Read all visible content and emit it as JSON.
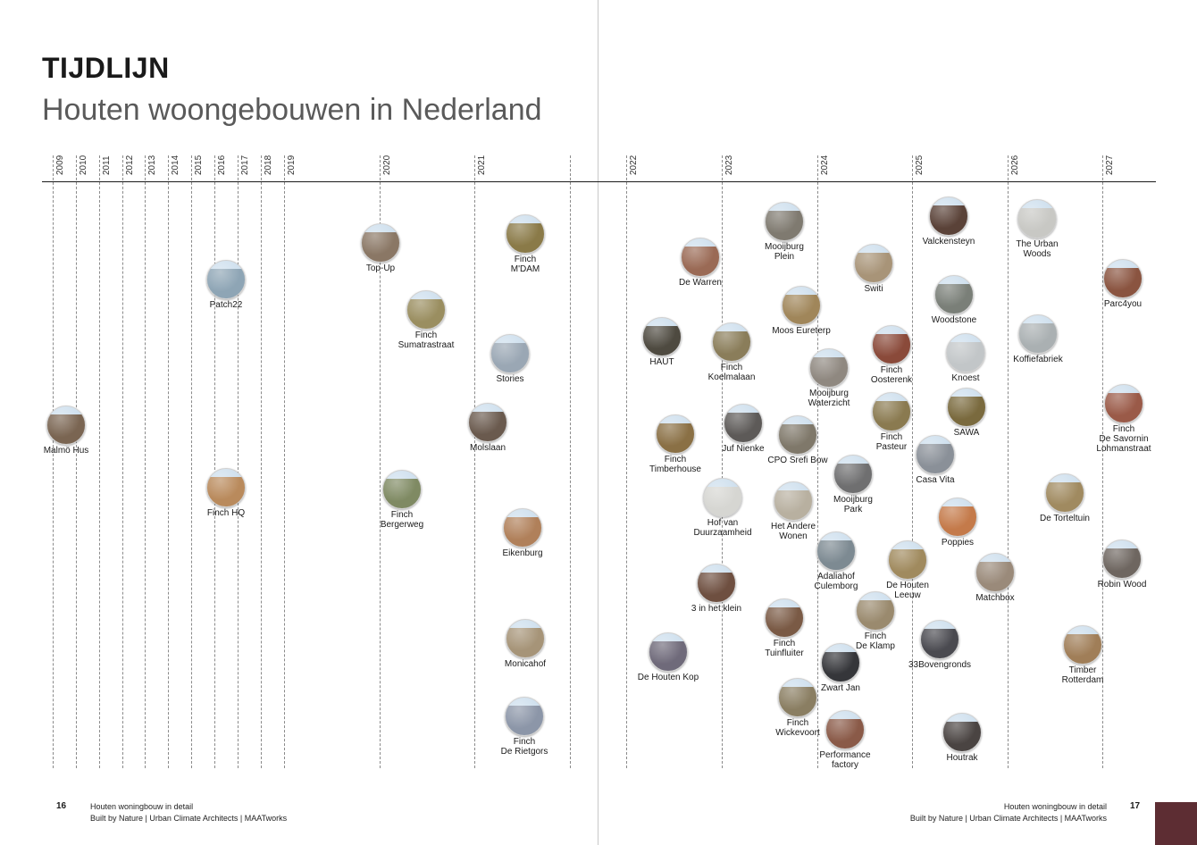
{
  "title": "TIJDLIJN",
  "subtitle": "Houten woongebouwen in Nederland",
  "accent_color": "#5d2d33",
  "years": [
    "2009",
    "2010",
    "2011",
    "2012",
    "2013",
    "2014",
    "2015",
    "2016",
    "2017",
    "2018",
    "2019",
    "2020",
    "2021",
    "2022",
    "2023",
    "2024",
    "2025",
    "2026",
    "2027"
  ],
  "buildings": [
    {
      "label": "Malmö Hus",
      "photo": "#7a6552"
    },
    {
      "label": "Patch22",
      "photo": "#8ea5b5"
    },
    {
      "label": "Finch HQ",
      "photo": "#b98a5c"
    },
    {
      "label": "Top-Up",
      "photo": "#8a7765"
    },
    {
      "label": "Finch\nBergerweg",
      "photo": "#7f8a63"
    },
    {
      "label": "Finch\nSumatrastraat",
      "photo": "#9a8e60"
    },
    {
      "label": "Finch\nM'DAM",
      "photo": "#8a7a48"
    },
    {
      "label": "Stories",
      "photo": "#9aa7b4"
    },
    {
      "label": "Molslaan",
      "photo": "#6a5a4e"
    },
    {
      "label": "Eikenburg",
      "photo": "#b0805a"
    },
    {
      "label": "Monicahof",
      "photo": "#a69478"
    },
    {
      "label": "Finch\nDe Rietgors",
      "photo": "#8c96a8"
    },
    {
      "label": "De Warren",
      "photo": "#9a6a55"
    },
    {
      "label": "HAUT",
      "photo": "#4e4a40"
    },
    {
      "label": "Finch\nTimberhouse",
      "photo": "#8a7045"
    },
    {
      "label": "De Houten Kop",
      "photo": "#6f6a7a"
    },
    {
      "label": "Mooijburg\nPlein",
      "photo": "#7f7a70"
    },
    {
      "label": "Finch\nKoelmalaan",
      "photo": "#8a7d5a"
    },
    {
      "label": "Juf Nienke",
      "photo": "#5d5a58"
    },
    {
      "label": "Hof van\nDuurzaamheid",
      "photo": "#d6d6d2"
    },
    {
      "label": "3 in het klein",
      "photo": "#6e4f40"
    },
    {
      "label": "Finch\nTuinfluiter",
      "photo": "#7a5a45"
    },
    {
      "label": "Finch\nWickevoort",
      "photo": "#8a7e62"
    },
    {
      "label": "Moos Eureterp",
      "photo": "#a0865a"
    },
    {
      "label": "CPO Srefi Bow",
      "photo": "#7f786a"
    },
    {
      "label": "Het Andere\nWonen",
      "photo": "#b8b0a0"
    },
    {
      "label": "Mooijburg\nWaterzicht",
      "photo": "#8f8880"
    },
    {
      "label": "Mooijburg\nPark",
      "photo": "#6f6f70"
    },
    {
      "label": "Adaliahof\nCulemborg",
      "photo": "#7d8a92"
    },
    {
      "label": "Zwart Jan",
      "photo": "#35363a"
    },
    {
      "label": "Performance\nfactory",
      "photo": "#8a5a48"
    },
    {
      "label": "Switi",
      "photo": "#a89478"
    },
    {
      "label": "Finch\nOosterenk",
      "photo": "#8a4a3a"
    },
    {
      "label": "Finch\nPasteur",
      "photo": "#8a7a50"
    },
    {
      "label": "Finch\nDe Klamp",
      "photo": "#9a8a6e"
    },
    {
      "label": "Casa Vita",
      "photo": "#8a9098"
    },
    {
      "label": "De Houten\nLeeuw",
      "photo": "#a08a5e"
    },
    {
      "label": "33Bovengronds",
      "photo": "#4a4a50"
    },
    {
      "label": "Valckensteyn",
      "photo": "#5a4238"
    },
    {
      "label": "Woodstone",
      "photo": "#7a7f78"
    },
    {
      "label": "Knoest",
      "photo": "#c2c6c8"
    },
    {
      "label": "SAWA",
      "photo": "#7a6a3e"
    },
    {
      "label": "Poppies",
      "photo": "#c47a4a"
    },
    {
      "label": "Matchbox",
      "photo": "#9a8a7a"
    },
    {
      "label": "Houtrak",
      "photo": "#4a4442"
    },
    {
      "label": "The Urban\nWoods",
      "photo": "#c8c8c4"
    },
    {
      "label": "Koffiefabriek",
      "photo": "#aab0b2"
    },
    {
      "label": "De Torteltuin",
      "photo": "#a08a60"
    },
    {
      "label": "Timber\nRotterdam",
      "photo": "#a07e58"
    },
    {
      "label": "Parc4you",
      "photo": "#8a5440"
    },
    {
      "label": "Finch\nDe Savornin\nLohmanstraat",
      "photo": "#9a5a48"
    },
    {
      "label": "Robin Wood",
      "photo": "#6e6660"
    }
  ],
  "footer": {
    "left_page": "16",
    "left_title": "Houten woningbouw in detail",
    "left_credits": "Built by Nature  |  Urban Climate Architects  |  MAATworks",
    "right_page": "17",
    "right_title": "Houten woningbouw in detail",
    "right_credits": "Built by Nature  |  Urban Climate Architects  |  MAATworks"
  }
}
